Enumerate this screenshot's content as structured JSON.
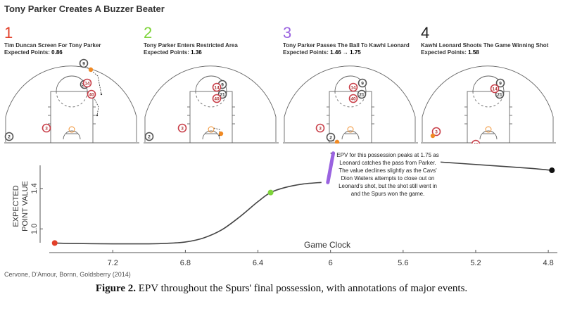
{
  "title": "Tony Parker Creates A Buzzer Beater",
  "panels": [
    {
      "number": "1",
      "color": "#e2402a",
      "caption": "Tim Duncan Screen For Tony Parker",
      "ep_label": "Expected Points:",
      "ep_value": "0.86"
    },
    {
      "number": "2",
      "color": "#7ed43a",
      "caption": "Tony Parker Enters Restricted Area",
      "ep_label": "Expected Points:",
      "ep_value": "1.36"
    },
    {
      "number": "3",
      "color": "#9a63e0",
      "caption": "Tony Parker Passes The Ball To Kawhi Leonard",
      "ep_label": "Expected Points:",
      "ep_value": "1.46 → 1.75"
    },
    {
      "number": "4",
      "color": "#222222",
      "caption": "Kawhi Leonard Shoots The Game Winning Shot",
      "ep_label": "Expected Points:",
      "ep_value": "1.58"
    }
  ],
  "players": {
    "spurs_numbers": [
      "9",
      "21",
      "2"
    ],
    "cavs_numbers": [
      "3",
      "14",
      "40"
    ],
    "spurs_color": "#555555",
    "cavs_color": "#c9404a",
    "ball_color": "#f08a24"
  },
  "annotation": "EPV for this possession peaks at 1.75 as Leonard catches the pass from Parker. The value declines slightly as the Cavs' Dion Waiters attempts to close out on Leonard's shot, but the shot still went in and the Spurs won the game.",
  "credit": "Cervone, D'Amour, Bornn, Goldsberry (2014)",
  "figure_caption": {
    "label": "Figure 2.",
    "text": " EPV throughout the Spurs' final possession, with annotations of major events."
  },
  "chart_data": {
    "type": "line",
    "title": "",
    "xlabel": "Game Clock",
    "ylabel": "EXPECTED POINT VALUE",
    "x_reversed": true,
    "xlim": [
      7.55,
      4.75
    ],
    "ylim": [
      0.8,
      1.88
    ],
    "xticks": [
      7.2,
      6.8,
      6.4,
      6.0,
      5.6,
      5.2,
      4.8
    ],
    "xtick_labels": [
      "7.2",
      "6.8",
      "6.4",
      "6",
      "5.6",
      "5.2",
      "4.8"
    ],
    "yticks": [
      1.0,
      1.4
    ],
    "ytick_labels": [
      "1.0",
      "1.4"
    ],
    "series": [
      {
        "x": [
          7.52,
          7.4,
          7.2,
          7.0,
          6.9,
          6.8,
          6.7,
          6.6,
          6.5,
          6.4,
          6.33,
          6.25,
          6.15,
          6.05,
          6.0,
          5.9,
          5.8,
          5.7,
          5.6,
          5.5,
          5.3,
          5.1,
          4.9,
          4.78
        ],
        "y": [
          0.86,
          0.855,
          0.852,
          0.852,
          0.857,
          0.87,
          0.91,
          0.99,
          1.12,
          1.27,
          1.36,
          1.41,
          1.445,
          1.46,
          1.75,
          1.74,
          1.72,
          1.7,
          1.69,
          1.675,
          1.65,
          1.625,
          1.6,
          1.58
        ]
      }
    ],
    "markers": [
      {
        "x": 7.52,
        "y": 0.86,
        "color": "#e2402a"
      },
      {
        "x": 6.33,
        "y": 1.36,
        "color": "#7ed43a"
      },
      {
        "x": 4.78,
        "y": 1.58,
        "color": "#111111"
      }
    ],
    "highlight_segment": {
      "x": [
        6.015,
        5.985
      ],
      "y": [
        1.46,
        1.75
      ],
      "color": "#9a63e0"
    }
  }
}
